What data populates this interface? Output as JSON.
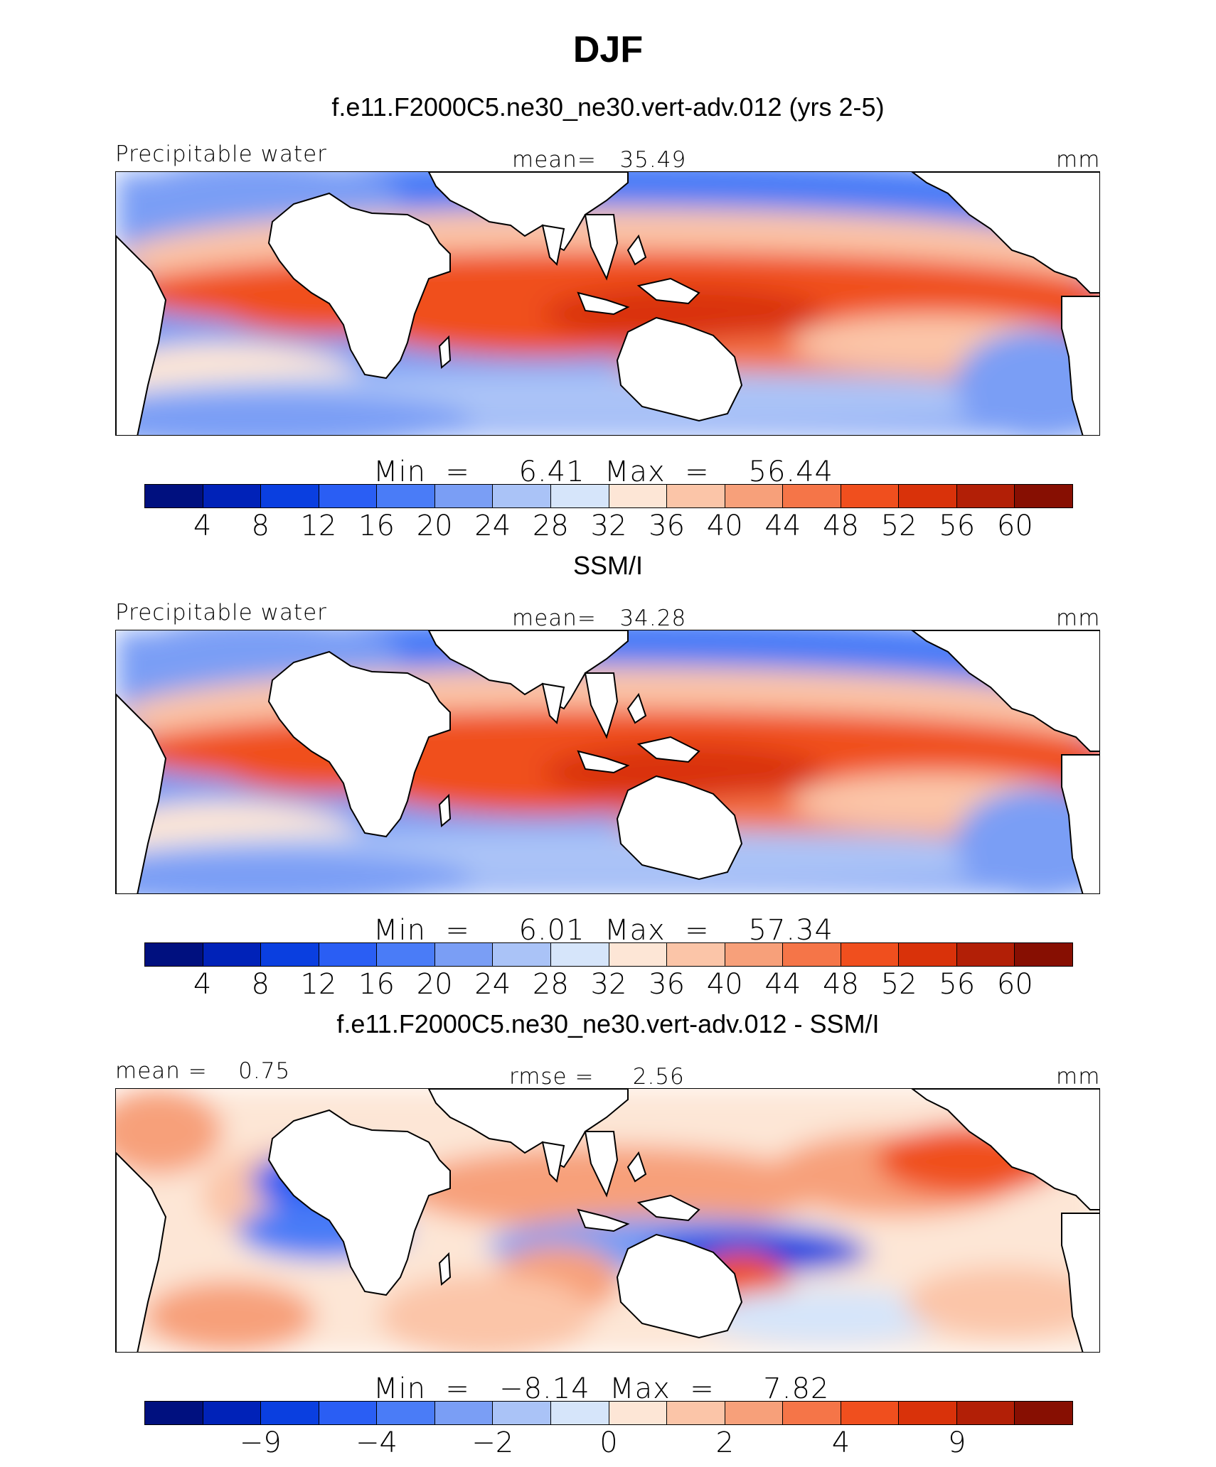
{
  "title": "DJF",
  "panels": [
    {
      "subtitle": "f.e11.F2000C5.ne30_ne30.vert-adv.012 (yrs 2-5)",
      "left_label": "Precipitable water",
      "center_label": "mean=   35.49",
      "right_label": "mm",
      "minmax": "Min  =     6.41  Max  =    56.44",
      "colorbar_ticks": [
        "4",
        "8",
        "12",
        "16",
        "20",
        "24",
        "28",
        "32",
        "36",
        "40",
        "44",
        "48",
        "52",
        "56",
        "60"
      ],
      "kind": "model"
    },
    {
      "subtitle": "SSM/I",
      "left_label": "Precipitable water",
      "center_label": "mean=   34.28",
      "right_label": "mm",
      "minmax": "Min  =     6.01  Max  =    57.34",
      "colorbar_ticks": [
        "4",
        "8",
        "12",
        "16",
        "20",
        "24",
        "28",
        "32",
        "36",
        "40",
        "44",
        "48",
        "52",
        "56",
        "60"
      ],
      "kind": "obs"
    },
    {
      "subtitle": "f.e11.F2000C5.ne30_ne30.vert-adv.012 - SSM/I",
      "left_label": "mean =    0.75",
      "center_label": "rmse =     2.56",
      "right_label": "mm",
      "minmax": "Min  =   −8.14  Max  =     7.82",
      "colorbar_ticks": [
        "−9",
        "−4",
        "−2",
        "0",
        "2",
        "4",
        "9"
      ],
      "kind": "diff"
    }
  ],
  "colorbar_colors": [
    "#00107f",
    "#0022b8",
    "#0a3fe0",
    "#2a5ef4",
    "#4a7cf7",
    "#7a9ef5",
    "#aac3f7",
    "#d6e5fa",
    "#fde6d6",
    "#fbc5a8",
    "#f7a07a",
    "#f57548",
    "#f04f1e",
    "#d9320a",
    "#b21f06",
    "#870f02"
  ]
}
